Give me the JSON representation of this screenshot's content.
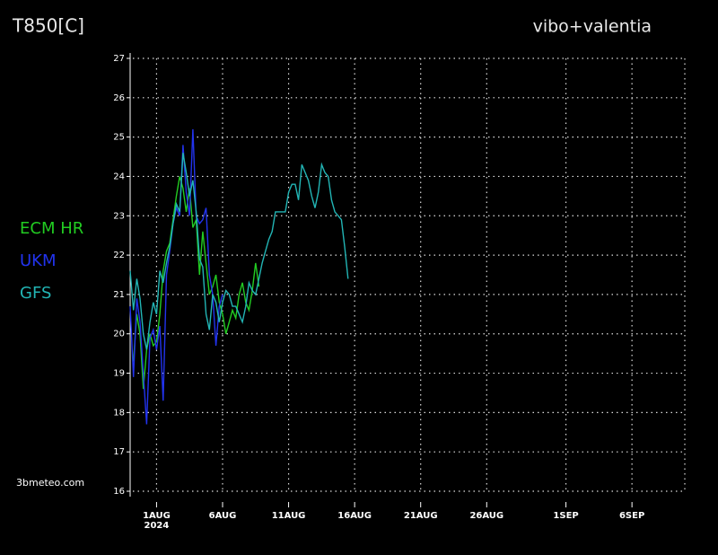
{
  "chart_data": {
    "type": "line",
    "title": "T850[C]",
    "location": "vibo+valentia",
    "source": "3bmeteo.com",
    "year_label": "2024",
    "xlim": [
      -2,
      40
    ],
    "ylim": [
      16,
      27
    ],
    "yticks": [
      16,
      17,
      18,
      19,
      20,
      21,
      22,
      23,
      24,
      25,
      26,
      27
    ],
    "xticks": [
      {
        "value": 0,
        "label": "1AUG"
      },
      {
        "value": 5,
        "label": "6AUG"
      },
      {
        "value": 10,
        "label": "11AUG"
      },
      {
        "value": 15,
        "label": "16AUG"
      },
      {
        "value": 20,
        "label": "21AUG"
      },
      {
        "value": 25,
        "label": "26AUG"
      },
      {
        "value": 31,
        "label": "1SEP"
      },
      {
        "value": 36,
        "label": "6SEP"
      }
    ],
    "grid": true,
    "series": [
      {
        "name": "ECM HR",
        "color": "#22cc22",
        "x": [
          -1.75,
          -1.5,
          -1.25,
          -1,
          -0.75,
          -0.5,
          -0.25,
          0,
          0.25,
          0.5,
          0.75,
          1,
          1.25,
          1.5,
          1.75,
          2,
          2.25,
          2.5,
          2.75,
          3,
          3.25,
          3.5,
          3.75,
          4,
          4.25,
          4.5,
          4.75,
          5,
          5.25,
          5.5,
          5.75,
          6,
          6.25,
          6.5,
          6.75,
          7,
          7.25,
          7.5,
          7.75
        ],
        "values": [
          19.3,
          20.5,
          20.0,
          18.6,
          19.6,
          20.0,
          19.7,
          19.8,
          20.5,
          21.6,
          22.1,
          22.3,
          22.9,
          23.5,
          24.0,
          23.7,
          23.1,
          23.7,
          22.7,
          22.9,
          21.5,
          22.6,
          21.8,
          21.0,
          21.2,
          21.5,
          20.8,
          20.5,
          20.0,
          20.3,
          20.6,
          20.4,
          21.0,
          21.3,
          20.8,
          20.6,
          21.1,
          21.8,
          21.2
        ]
      },
      {
        "name": "UKM",
        "color": "#2233ee",
        "x": [
          -2,
          -1.75,
          -1.5,
          -1.25,
          -1,
          -0.75,
          -0.5,
          -0.25,
          0,
          0.25,
          0.5,
          0.75,
          1,
          1.25,
          1.5,
          1.75,
          2,
          2.25,
          2.5,
          2.75,
          3,
          3.25,
          3.5,
          3.75,
          4,
          4.25,
          4.5,
          4.75,
          5
        ],
        "values": [
          20.7,
          18.9,
          20.9,
          20.3,
          19.0,
          17.7,
          19.9,
          20.1,
          19.6,
          20.2,
          18.3,
          21.5,
          22.1,
          22.8,
          23.2,
          23.0,
          24.8,
          23.6,
          23.0,
          25.2,
          23.0,
          22.8,
          22.9,
          23.2,
          21.5,
          21.0,
          19.7,
          20.7,
          21.0
        ]
      },
      {
        "name": "GFS",
        "color": "#22b5b5",
        "x": [
          -2,
          -1.75,
          -1.5,
          -1.25,
          -1,
          -0.75,
          -0.5,
          -0.25,
          0,
          0.25,
          0.5,
          0.75,
          1,
          1.25,
          1.5,
          1.75,
          2,
          2.25,
          2.5,
          2.75,
          3,
          3.25,
          3.5,
          3.75,
          4,
          4.25,
          4.5,
          4.75,
          5,
          5.25,
          5.5,
          5.75,
          6,
          6.25,
          6.5,
          6.75,
          7,
          7.25,
          7.5,
          7.75,
          8,
          8.25,
          8.5,
          8.75,
          9,
          9.25,
          9.5,
          9.75,
          10,
          10.25,
          10.5,
          10.75,
          11,
          11.25,
          11.5,
          11.75,
          12,
          12.25,
          12.5,
          12.75,
          13,
          13.25,
          13.5,
          13.75,
          14,
          14.25,
          14.5
        ],
        "values": [
          21.6,
          20.6,
          21.4,
          20.9,
          20.0,
          19.6,
          20.3,
          20.8,
          20.5,
          21.6,
          21.3,
          21.8,
          22.2,
          22.8,
          23.3,
          23.1,
          24.6,
          24.1,
          23.5,
          23.9,
          23.1,
          21.9,
          21.7,
          20.5,
          20.1,
          21.0,
          20.8,
          20.3,
          20.8,
          21.1,
          21.0,
          20.7,
          20.7,
          20.5,
          20.3,
          20.7,
          21.3,
          21.1,
          21.0,
          21.4,
          21.8,
          22.1,
          22.4,
          22.6,
          23.1,
          23.1,
          23.1,
          23.1,
          23.6,
          23.8,
          23.8,
          23.4,
          24.3,
          24.1,
          23.9,
          23.5,
          23.2,
          23.6,
          24.3,
          24.1,
          24.0,
          23.4,
          23.1,
          23.0,
          22.9,
          22.2,
          21.4
        ]
      }
    ]
  }
}
